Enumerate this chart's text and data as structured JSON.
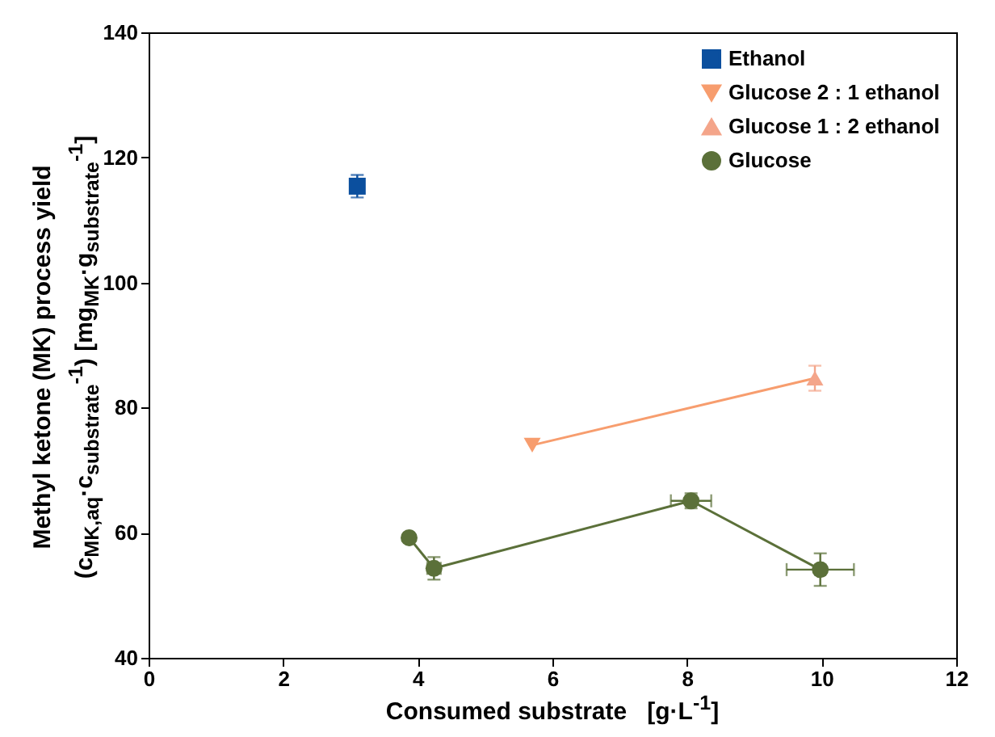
{
  "chart_data": {
    "type": "line",
    "xlabel": "Consumed substrate   [g·L$^{-1}$]",
    "ylabel": "Methyl ketone (MK) process yield\n(c$_{MK,aq}$·c$_{substrate}$$^{-1}$)   [mg$_{MK}$·g$_{substrate}$$^{-1}$]",
    "xlim": [
      0,
      12
    ],
    "xticks": [
      0,
      2,
      4,
      6,
      8,
      10,
      12
    ],
    "ylim": [
      40,
      140
    ],
    "yticks": [
      40,
      60,
      80,
      100,
      120,
      140
    ],
    "grid": false,
    "legend": "top right",
    "series": [
      {
        "name": "Ethanol",
        "type": "scatter",
        "marker": "square",
        "color": "#0b4f9e",
        "x": [
          3.1
        ],
        "values": [
          115.4
        ],
        "errors": [
          1.8
        ]
      },
      {
        "name": "Glucose 2 : 1 ethanol",
        "marker": "triangle-down",
        "color": "#f79d6e",
        "x": [
          5.7
        ],
        "values": [
          74
        ]
      },
      {
        "name": "Glucose 1 : 2 ethanol",
        "marker": "triangle",
        "color": "#f4a58a",
        "x": [
          9.9
        ],
        "values": [
          84.7
        ],
        "errors": [
          2
        ]
      },
      {
        "marker": "none",
        "color": "#f79d6e",
        "x": [
          5.7,
          9.9
        ],
        "values": [
          74,
          84.7
        ]
      },
      {
        "name": "Glucose",
        "marker": "circle",
        "color": "#5b7039",
        "x": [
          3.87,
          4.24,
          8.06,
          9.98
        ],
        "values": [
          59.2,
          54.3,
          65.1,
          54.1
        ],
        "errors": [
          null,
          1.8,
          1.2,
          2.6
        ],
        "xerrors": [
          null,
          0.1,
          0.3,
          0.5
        ]
      }
    ]
  }
}
